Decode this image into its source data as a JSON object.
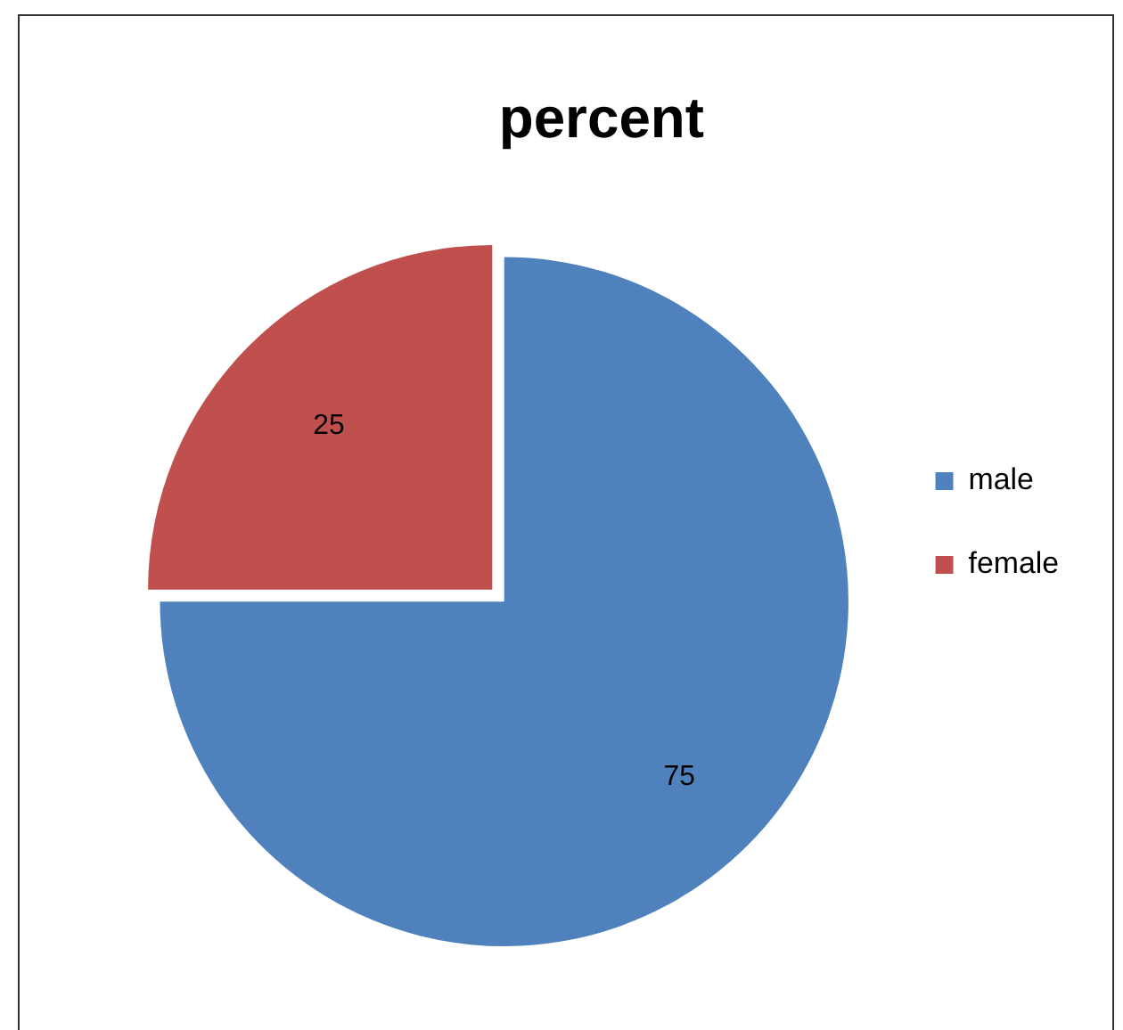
{
  "chart_data": {
    "type": "pie",
    "title": "percent",
    "categories": [
      "male",
      "female"
    ],
    "values": [
      75,
      25
    ],
    "colors": [
      "#4f81bd",
      "#c0504d"
    ],
    "data_labels": true,
    "legend": "right"
  }
}
